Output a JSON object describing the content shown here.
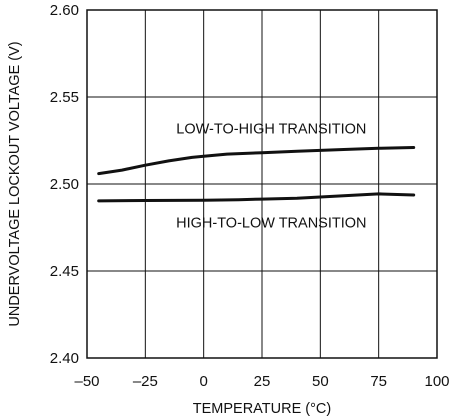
{
  "chart_data": {
    "type": "line",
    "xlabel": "TEMPERATURE (°C)",
    "ylabel": "UNDERVOLTAGE LOCKOUT VOLTAGE (V)",
    "xlim": [
      -50,
      100
    ],
    "ylim": [
      2.4,
      2.6
    ],
    "x_ticks": [
      -50,
      -25,
      0,
      25,
      50,
      75,
      100
    ],
    "x_tick_labels": [
      "–50",
      "–25",
      "0",
      "25",
      "50",
      "75",
      "100"
    ],
    "y_ticks": [
      2.4,
      2.45,
      2.5,
      2.55,
      2.6
    ],
    "y_tick_labels": [
      "2.40",
      "2.45",
      "2.50",
      "2.55",
      "2.60"
    ],
    "grid": true,
    "series": [
      {
        "x": [
          -45,
          -35,
          -25,
          -15,
          -5,
          0,
          10,
          25,
          40,
          50,
          60,
          75,
          90
        ],
        "y": [
          2.506,
          2.508,
          2.5108,
          2.5133,
          2.5153,
          2.516,
          2.5172,
          2.518,
          2.5188,
          2.5193,
          2.5198,
          2.5205,
          2.521
        ]
      },
      {
        "x": [
          -45,
          -25,
          0,
          15,
          25,
          40,
          50,
          60,
          75,
          90
        ],
        "y": [
          2.4903,
          2.4905,
          2.4907,
          2.491,
          2.4913,
          2.4918,
          2.4925,
          2.4933,
          2.4943,
          2.4937
        ]
      }
    ],
    "annotations": [
      {
        "text": "LOW-TO-HIGH TRANSITION",
        "x": 29,
        "y": 2.529
      },
      {
        "text": "HIGH-TO-LOW TRANSITION",
        "x": 29,
        "y": 2.475
      }
    ]
  }
}
